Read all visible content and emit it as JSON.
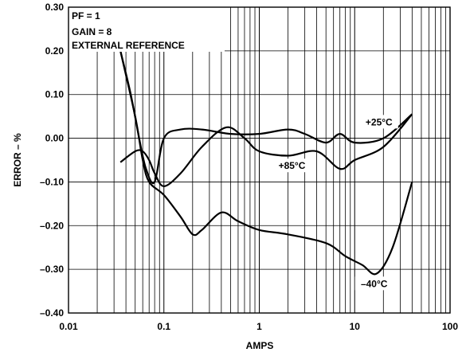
{
  "chart_data": {
    "type": "line",
    "title": "",
    "xlabel": "AMPS",
    "ylabel": "ERROR – %",
    "xscale": "log",
    "xlim": [
      0.01,
      100
    ],
    "ylim": [
      -0.4,
      0.3
    ],
    "grid": true,
    "x_ticks": [
      {
        "value": 0.01,
        "label": "0.01"
      },
      {
        "value": 0.1,
        "label": "0.1"
      },
      {
        "value": 1,
        "label": "1"
      },
      {
        "value": 10,
        "label": "10"
      },
      {
        "value": 100,
        "label": "100"
      }
    ],
    "y_ticks": [
      {
        "value": 0.3,
        "label": "0.30"
      },
      {
        "value": 0.2,
        "label": "0.20"
      },
      {
        "value": 0.1,
        "label": "0.10"
      },
      {
        "value": 0.0,
        "label": "0.00"
      },
      {
        "value": -0.1,
        "label": "–0.10"
      },
      {
        "value": -0.2,
        "label": "–0.20"
      },
      {
        "value": -0.3,
        "label": "–0.30"
      },
      {
        "value": -0.4,
        "label": "–0.40"
      }
    ],
    "conditions": [
      "PF = 1",
      "GAIN = 8",
      "EXTERNAL REFERENCE"
    ],
    "series": [
      {
        "name": "+25°C",
        "x": [
          0.035,
          0.045,
          0.055,
          0.065,
          0.08,
          0.1,
          0.15,
          0.25,
          0.5,
          1,
          2,
          3,
          5,
          7,
          10,
          20,
          40
        ],
        "y": [
          0.2,
          0.1,
          0.0,
          -0.07,
          -0.1,
          0.0,
          0.02,
          0.02,
          0.01,
          0.01,
          0.02,
          0.01,
          -0.01,
          0.01,
          -0.01,
          0.0,
          0.055
        ]
      },
      {
        "name": "+85°C",
        "x": [
          0.035,
          0.05,
          0.06,
          0.07,
          0.08,
          0.1,
          0.15,
          0.25,
          0.45,
          0.7,
          1,
          2,
          4,
          7,
          10,
          20,
          40
        ],
        "y": [
          -0.055,
          -0.03,
          -0.03,
          -0.05,
          -0.08,
          -0.11,
          -0.08,
          -0.02,
          0.025,
          0.0,
          -0.03,
          -0.04,
          -0.03,
          -0.07,
          -0.05,
          -0.02,
          0.055
        ]
      },
      {
        "name": "–40°C",
        "x": [
          0.035,
          0.05,
          0.06,
          0.07,
          0.1,
          0.15,
          0.2,
          0.25,
          0.4,
          0.6,
          1,
          2,
          5,
          8,
          12,
          17,
          25,
          40
        ],
        "y": [
          0.2,
          0.05,
          -0.05,
          -0.1,
          -0.13,
          -0.18,
          -0.22,
          -0.21,
          -0.17,
          -0.19,
          -0.21,
          -0.22,
          -0.24,
          -0.27,
          -0.29,
          -0.31,
          -0.25,
          -0.1
        ]
      }
    ],
    "annotations": [
      {
        "text": "+25°C",
        "series": "+25°C",
        "x": 18,
        "y": 0.035
      },
      {
        "text": "+85°C",
        "series": "+85°C",
        "x": 2.2,
        "y": -0.065
      },
      {
        "text": "–40°C",
        "series": "–40°C",
        "x": 16,
        "y": -0.335
      }
    ]
  }
}
